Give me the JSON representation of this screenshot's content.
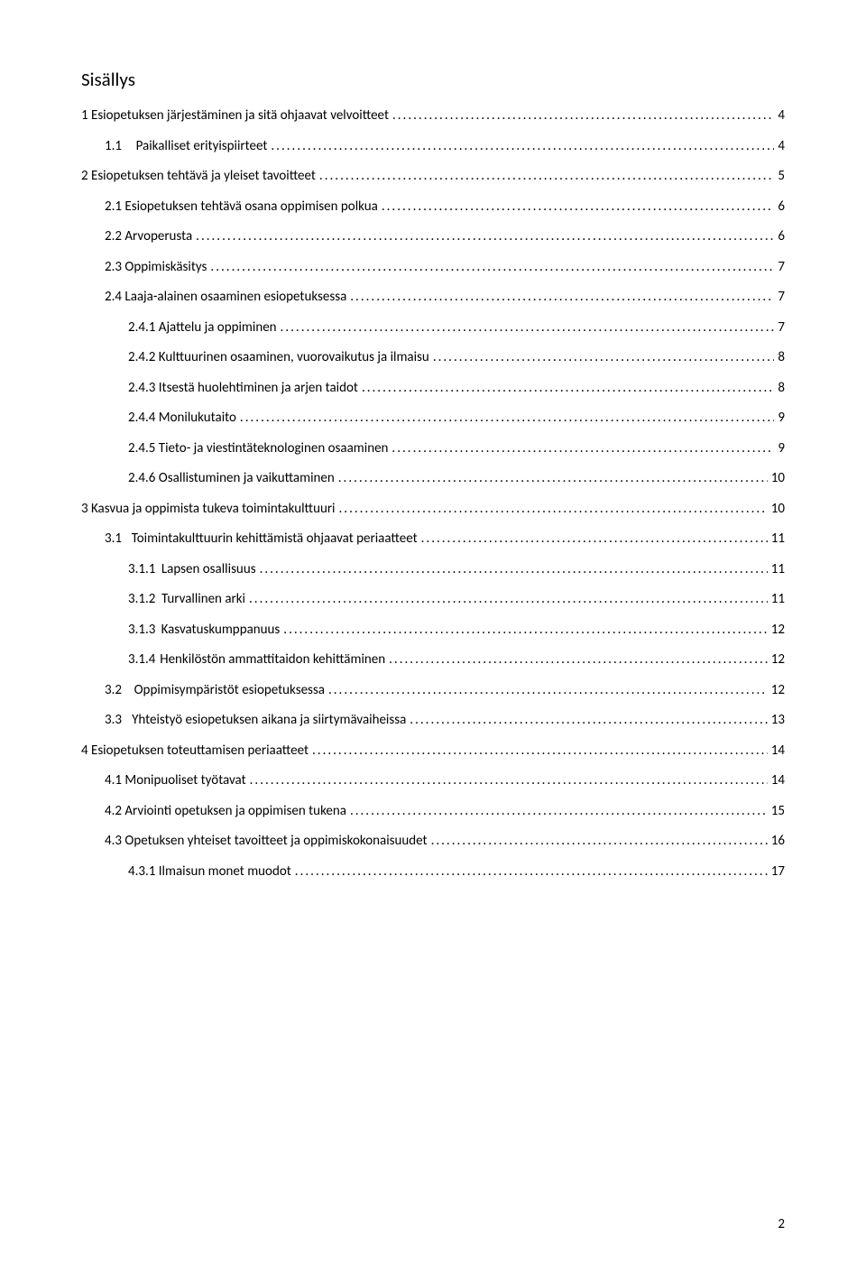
{
  "title": "Sisällys",
  "pageNumber": "2",
  "entries": [
    {
      "indent": 0,
      "text": "1 Esiopetuksen järjestäminen ja sitä ohjaavat velvoitteet",
      "page": "4"
    },
    {
      "indent": 1,
      "text": "1.1",
      "tab": "wide",
      "rest": "Paikalliset erityispiirteet",
      "page": "4"
    },
    {
      "indent": 0,
      "text": "2 Esiopetuksen tehtävä ja yleiset tavoitteet",
      "page": "5"
    },
    {
      "indent": 1,
      "text": "2.1 Esiopetuksen tehtävä osana oppimisen polkua",
      "page": "6"
    },
    {
      "indent": 1,
      "text": "2.2 Arvoperusta",
      "page": "6"
    },
    {
      "indent": 1,
      "text": "2.3 Oppimiskäsitys",
      "page": "7"
    },
    {
      "indent": 1,
      "text": "2.4 Laaja-alainen osaaminen esiopetuksessa",
      "page": "7"
    },
    {
      "indent": 2,
      "text": "2.4.1 Ajattelu ja oppiminen",
      "page": "7"
    },
    {
      "indent": 2,
      "text": "2.4.2 Kulttuurinen osaaminen, vuorovaikutus ja ilmaisu",
      "page": "8"
    },
    {
      "indent": 2,
      "text": "2.4.3 Itsestä huolehtiminen ja arjen taidot",
      "page": "8"
    },
    {
      "indent": 2,
      "text": "2.4.4 Monilukutaito",
      "page": "9"
    },
    {
      "indent": 2,
      "text": "2.4.5 Tieto- ja viestintäteknologinen osaaminen",
      "page": "9"
    },
    {
      "indent": 2,
      "text": "2.4.6 Osallistuminen ja vaikuttaminen",
      "page": "10"
    },
    {
      "indent": 0,
      "text": "3 Kasvua ja oppimista tukeva toimintakulttuuri",
      "page": "10"
    },
    {
      "indent": 1,
      "text": "3.1",
      "tab": "wide",
      "rest": "Toimintakulttuurin kehittämistä ohjaavat periaatteet",
      "page": "11"
    },
    {
      "indent": 2,
      "text": "3.1.1",
      "tab": "sm",
      "rest": "Lapsen osallisuus",
      "page": "11"
    },
    {
      "indent": 2,
      "text": "3.1.2",
      "tab": "sm",
      "rest": "Turvallinen arki",
      "page": "11"
    },
    {
      "indent": 2,
      "text": "3.1.3",
      "tab": "sm",
      "rest": "Kasvatuskumppanuus",
      "page": "12"
    },
    {
      "indent": 2,
      "text": "3.1.4",
      "tab": "sm",
      "rest": "Henkilöstön ammattitaidon kehittäminen",
      "page": "12"
    },
    {
      "indent": 1,
      "text": "3.2",
      "tab": "wide",
      "rest": "Oppimisympäristöt esiopetuksessa",
      "page": "12"
    },
    {
      "indent": 1,
      "text": "3.3",
      "tab": "wide",
      "rest": "Yhteistyö esiopetuksen aikana ja siirtymävaiheissa",
      "page": "13"
    },
    {
      "indent": 0,
      "text": "4 Esiopetuksen toteuttamisen periaatteet",
      "page": "14"
    },
    {
      "indent": 1,
      "text": "4.1 Monipuoliset työtavat",
      "page": "14"
    },
    {
      "indent": 1,
      "text": "4.2 Arviointi opetuksen ja oppimisen tukena",
      "page": "15"
    },
    {
      "indent": 1,
      "text": "4.3 Opetuksen yhteiset tavoitteet ja oppimiskokonaisuudet",
      "page": "16"
    },
    {
      "indent": 2,
      "text": "4.3.1 Ilmaisun monet muodot",
      "page": "17"
    }
  ]
}
